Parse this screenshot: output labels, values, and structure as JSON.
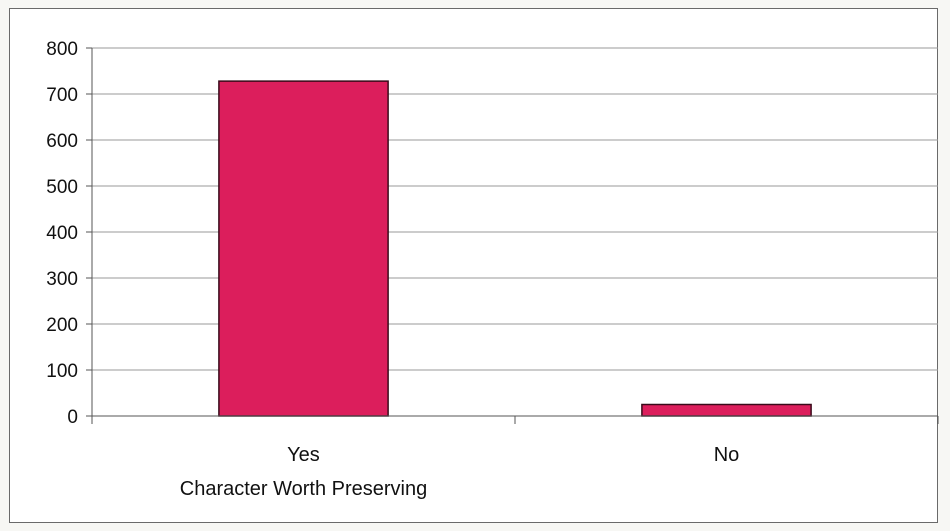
{
  "chart_data": {
    "type": "bar",
    "categories": [
      "Yes",
      "No"
    ],
    "values": [
      728,
      25
    ],
    "title": "",
    "xlabel": "Character Worth Preserving",
    "ylabel": "",
    "ylim": [
      0,
      800
    ],
    "yticks": [
      0,
      100,
      200,
      300,
      400,
      500,
      600,
      700,
      800
    ],
    "grid": true,
    "legend": "none",
    "bar_color": "#dc1e5c",
    "bar_edge_color": "#3a0a1a"
  }
}
